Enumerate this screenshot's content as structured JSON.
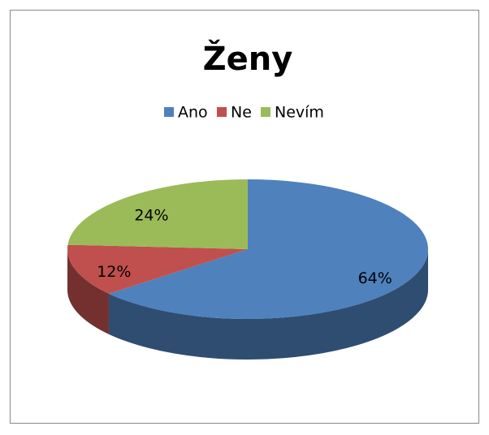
{
  "chart_data": {
    "type": "pie3d",
    "title": "Ženy",
    "categories": [
      "Ano",
      "Ne",
      "Nevím"
    ],
    "values": [
      64,
      12,
      24
    ],
    "value_labels": [
      "64%",
      "12%",
      "24%"
    ],
    "colors": [
      "#4f81bd",
      "#c0504d",
      "#9bbb59"
    ],
    "legend": "top"
  }
}
